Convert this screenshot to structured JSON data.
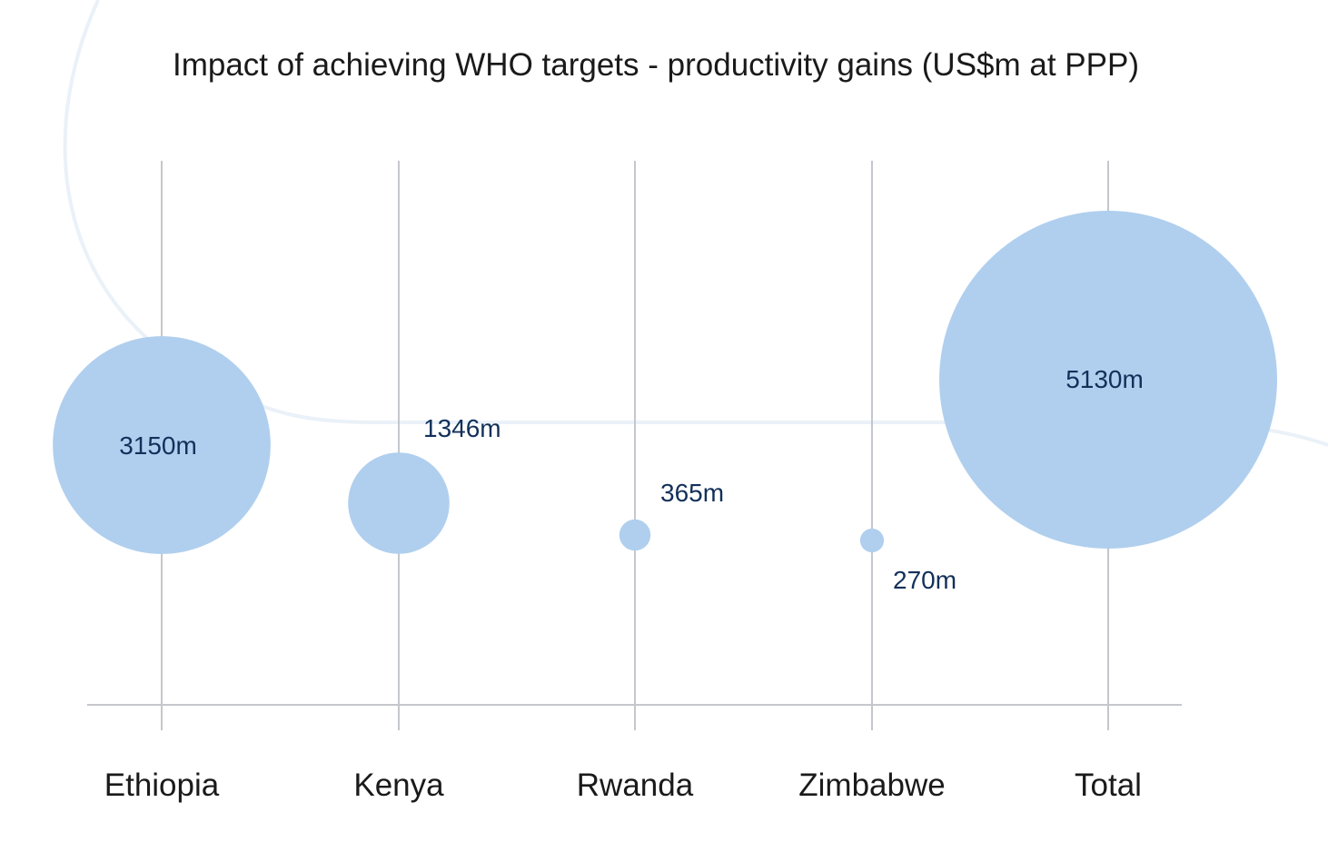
{
  "chart_data": {
    "type": "bubble",
    "title": "Impact of achieving WHO targets - productivity gains (US$m at PPP)",
    "categories": [
      "Ethiopia",
      "Kenya",
      "Rwanda",
      "Zimbabwe",
      "Total"
    ],
    "values": [
      3150,
      1346,
      365,
      270,
      5130
    ],
    "value_labels": [
      "3150m",
      "1346m",
      "365m",
      "270m",
      "5130m"
    ],
    "grid": false,
    "legend": "none",
    "colors": {
      "bubble": "#b0cfee",
      "label": "#13305a",
      "axis": "#c4c7cc",
      "decoration": "#eaf1f8"
    }
  }
}
